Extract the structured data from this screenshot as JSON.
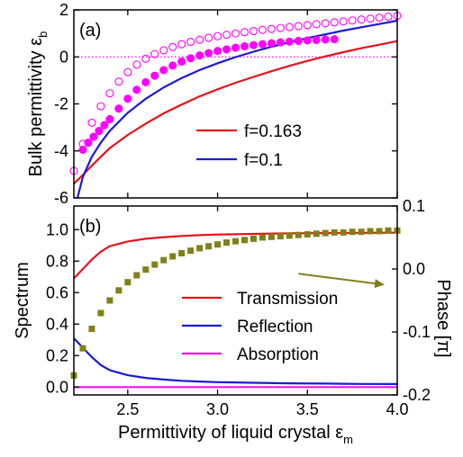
{
  "chart_data": [
    {
      "type": "line",
      "panel_label": "(a)",
      "ylabel_main": "Bulk permittivity ε",
      "ylabel_sub": "b",
      "xlim": [
        2.2,
        4.0
      ],
      "ylim": [
        -6,
        2
      ],
      "yticks": [
        -6,
        -4,
        -2,
        0,
        2
      ],
      "ytick_labels": [
        "-6",
        "-4",
        "-2",
        "0",
        "2"
      ],
      "reference_line": {
        "y": 0,
        "color": "#ff00ff",
        "style": "dotted"
      },
      "series": [
        {
          "name": "f=0.163",
          "color": "#e8121a",
          "x": [
            2.2,
            2.25,
            2.3,
            2.35,
            2.4,
            2.5,
            2.6,
            2.7,
            2.8,
            2.9,
            3.0,
            3.1,
            3.2,
            3.3,
            3.4,
            3.5,
            3.6,
            3.7,
            3.8,
            3.9,
            4.0
          ],
          "y": [
            -5.4,
            -5.02,
            -4.63,
            -4.25,
            -3.88,
            -3.32,
            -2.84,
            -2.4,
            -2.03,
            -1.68,
            -1.38,
            -1.1,
            -0.85,
            -0.61,
            -0.38,
            -0.17,
            0.02,
            0.2,
            0.37,
            0.52,
            0.67
          ]
        },
        {
          "name": "f=0.1",
          "color": "#1a1ad8",
          "x": [
            2.22,
            2.25,
            2.3,
            2.35,
            2.4,
            2.5,
            2.6,
            2.7,
            2.8,
            2.9,
            3.0,
            3.1,
            3.2,
            3.3,
            3.4,
            3.5,
            3.6,
            3.7,
            3.8,
            3.9,
            4.0
          ],
          "y": [
            -6.0,
            -5.1,
            -4.25,
            -3.65,
            -3.15,
            -2.38,
            -1.78,
            -1.3,
            -0.9,
            -0.56,
            -0.27,
            -0.01,
            0.22,
            0.43,
            0.62,
            0.8,
            0.96,
            1.12,
            1.26,
            1.4,
            1.54
          ]
        },
        {
          "marker": "open-circle",
          "color": "#ff00ff",
          "x": [
            2.2,
            2.25,
            2.3,
            2.35,
            2.4,
            2.45,
            2.5,
            2.55,
            2.6,
            2.65,
            2.7,
            2.75,
            2.8,
            2.85,
            2.9,
            2.95,
            3.0,
            3.05,
            3.1,
            3.15,
            3.2,
            3.25,
            3.3,
            3.35,
            3.4,
            3.45,
            3.5,
            3.55,
            3.6,
            3.65,
            3.7,
            3.75,
            3.8,
            3.85,
            3.9,
            3.95,
            4.0
          ],
          "y": [
            -4.85,
            -3.7,
            -2.8,
            -2.1,
            -1.55,
            -1.05,
            -0.65,
            -0.33,
            -0.08,
            0.12,
            0.28,
            0.42,
            0.54,
            0.64,
            0.73,
            0.81,
            0.88,
            0.94,
            1.0,
            1.05,
            1.1,
            1.15,
            1.19,
            1.23,
            1.27,
            1.31,
            1.35,
            1.39,
            1.43,
            1.47,
            1.51,
            1.55,
            1.59,
            1.63,
            1.67,
            1.71,
            1.75
          ]
        },
        {
          "marker": "filled-circle",
          "color": "#ff00ff",
          "x": [
            2.25,
            2.28,
            2.31,
            2.34,
            2.37,
            2.4,
            2.45,
            2.5,
            2.55,
            2.6,
            2.65,
            2.7,
            2.75,
            2.8,
            2.85,
            2.9,
            2.95,
            3.0,
            3.05,
            3.1,
            3.15,
            3.2,
            3.25,
            3.3,
            3.35,
            3.4,
            3.45,
            3.5,
            3.55,
            3.6,
            3.65
          ],
          "y": [
            -3.95,
            -3.65,
            -3.4,
            -3.15,
            -2.9,
            -2.65,
            -2.2,
            -1.78,
            -1.4,
            -1.08,
            -0.8,
            -0.56,
            -0.37,
            -0.2,
            -0.06,
            0.06,
            0.16,
            0.25,
            0.32,
            0.39,
            0.45,
            0.5,
            0.54,
            0.58,
            0.62,
            0.65,
            0.68,
            0.7,
            0.72,
            0.74,
            0.75
          ]
        }
      ],
      "legend": {
        "placement": "lower-right",
        "entries": [
          "f=0.163",
          "f=0.1"
        ]
      }
    },
    {
      "type": "line",
      "panel_label": "(b)",
      "xlabel_main": "Permittivity of liquid crystal ε",
      "xlabel_sub": "m",
      "ylabel": "Spectrum",
      "y2label": "Phase [π]",
      "xlim": [
        2.2,
        4.0
      ],
      "ylim": [
        -0.05,
        1.15
      ],
      "y2lim": [
        -0.2,
        0.1
      ],
      "xticks": [
        2.5,
        3.0,
        3.5,
        4.0
      ],
      "xtick_labels": [
        "2.5",
        "3.0",
        "3.5",
        "4.0"
      ],
      "yticks": [
        0.0,
        0.2,
        0.4,
        0.6,
        0.8,
        1.0
      ],
      "ytick_labels": [
        "0.0",
        "0.2",
        "0.4",
        "0.6",
        "0.8",
        "1.0"
      ],
      "y2ticks": [
        -0.2,
        -0.1,
        0.0,
        0.1
      ],
      "y2tick_labels": [
        "-0.2",
        "-0.1",
        "0.0",
        "0.1"
      ],
      "series": [
        {
          "name": "Transmission",
          "color": "#e8121a",
          "x": [
            2.2,
            2.25,
            2.3,
            2.35,
            2.4,
            2.5,
            2.6,
            2.7,
            2.8,
            2.9,
            3.0,
            3.2,
            3.4,
            3.6,
            3.8,
            4.0
          ],
          "y": [
            0.69,
            0.75,
            0.81,
            0.86,
            0.895,
            0.925,
            0.942,
            0.952,
            0.96,
            0.965,
            0.969,
            0.973,
            0.976,
            0.978,
            0.98,
            0.981
          ]
        },
        {
          "name": "Reflection",
          "color": "#1a1ad8",
          "x": [
            2.2,
            2.25,
            2.3,
            2.35,
            2.4,
            2.5,
            2.6,
            2.7,
            2.8,
            2.9,
            3.0,
            3.2,
            3.4,
            3.6,
            3.8,
            4.0
          ],
          "y": [
            0.31,
            0.25,
            0.19,
            0.14,
            0.107,
            0.075,
            0.058,
            0.048,
            0.04,
            0.035,
            0.031,
            0.027,
            0.024,
            0.022,
            0.02,
            0.019
          ]
        },
        {
          "name": "Absorption",
          "color": "#ee12ee",
          "x": [
            2.2,
            4.0
          ],
          "y": [
            0.0,
            0.0
          ]
        },
        {
          "axis": "right",
          "marker": "square",
          "color": "#80801a",
          "x": [
            2.2,
            2.25,
            2.3,
            2.35,
            2.4,
            2.45,
            2.5,
            2.55,
            2.6,
            2.65,
            2.7,
            2.75,
            2.8,
            2.85,
            2.9,
            2.95,
            3.0,
            3.05,
            3.1,
            3.15,
            3.2,
            3.25,
            3.3,
            3.35,
            3.4,
            3.45,
            3.5,
            3.55,
            3.6,
            3.65,
            3.7,
            3.75,
            3.8,
            3.85,
            3.9,
            3.95,
            4.0
          ],
          "y": [
            -0.169,
            -0.126,
            -0.095,
            -0.07,
            -0.05,
            -0.034,
            -0.021,
            -0.01,
            -0.001,
            0.007,
            0.014,
            0.02,
            0.025,
            0.029,
            0.033,
            0.036,
            0.039,
            0.042,
            0.044,
            0.046,
            0.048,
            0.05,
            0.051,
            0.052,
            0.053,
            0.054,
            0.055,
            0.056,
            0.057,
            0.058,
            0.058,
            0.059,
            0.059,
            0.06,
            0.06,
            0.061,
            0.061
          ]
        }
      ],
      "annotation": {
        "type": "arrow",
        "color": "#80801a",
        "from": [
          3.45,
          0.72
        ],
        "to": [
          3.93,
          0.65
        ]
      },
      "legend": {
        "placement": "lower-right",
        "entries": [
          "Transmission",
          "Reflection",
          "Absorption"
        ]
      }
    }
  ]
}
